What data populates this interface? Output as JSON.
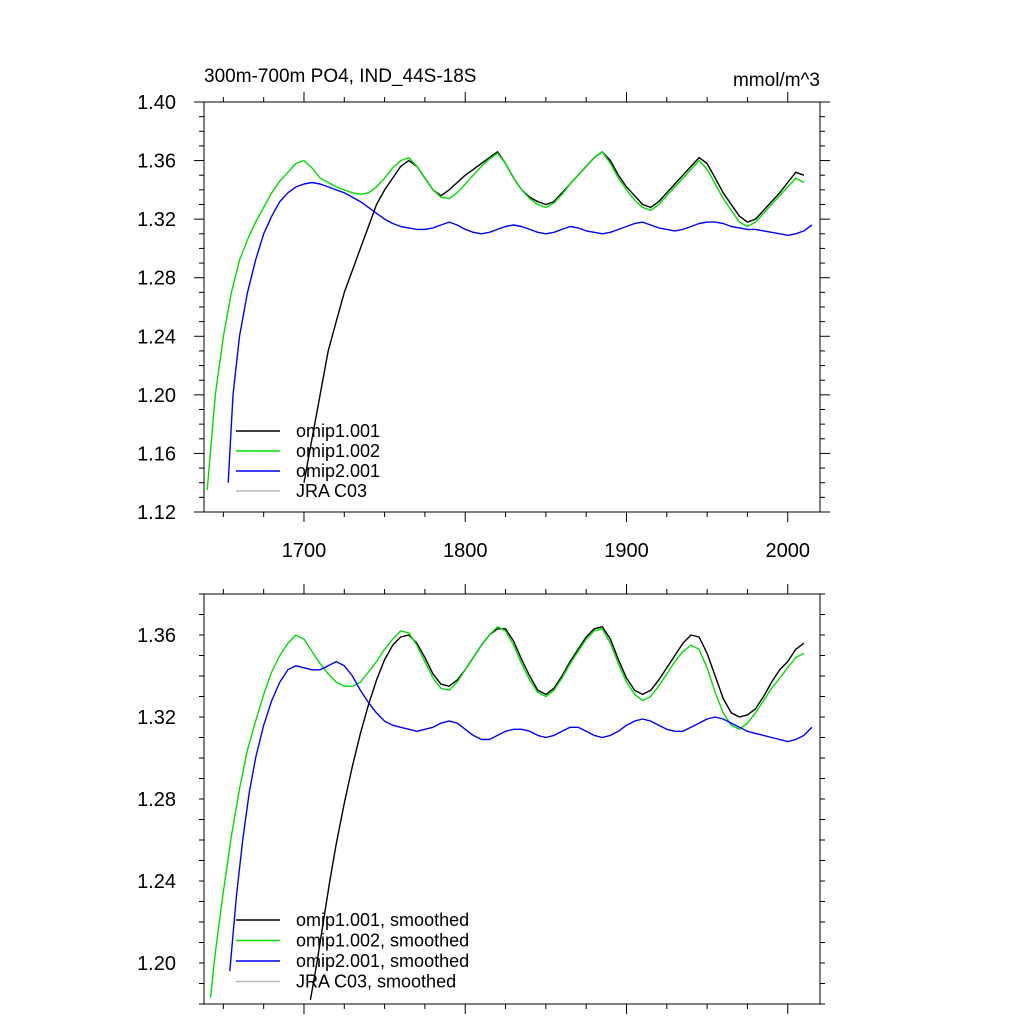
{
  "chart_data": [
    {
      "type": "line",
      "title": "300m-700m PO4, IND_44S-18S",
      "units": "mmol/m^3",
      "xlim": [
        1638,
        2020
      ],
      "ylim": [
        1.12,
        1.4
      ],
      "xticks": [
        1700,
        1800,
        1900,
        2000
      ],
      "xtick_labels": [
        "1700",
        "1800",
        "1900",
        "2000"
      ],
      "yticks": [
        1.12,
        1.16,
        1.2,
        1.24,
        1.28,
        1.32,
        1.36,
        1.4
      ],
      "ytick_labels": [
        "1.12",
        "1.16",
        "1.20",
        "1.24",
        "1.28",
        "1.32",
        "1.36",
        "1.40"
      ],
      "legend_position": "bottom-left",
      "series": [
        {
          "name": "omip1.001",
          "color": "#000000",
          "x": [
            1700,
            1705,
            1710,
            1715,
            1720,
            1725,
            1730,
            1735,
            1740,
            1745,
            1750,
            1755,
            1760,
            1765,
            1770,
            1775,
            1780,
            1785,
            1790,
            1795,
            1800,
            1805,
            1810,
            1815,
            1820,
            1825,
            1830,
            1835,
            1840,
            1845,
            1850,
            1855,
            1860,
            1865,
            1870,
            1875,
            1880,
            1885,
            1890,
            1895,
            1900,
            1905,
            1910,
            1915,
            1920,
            1925,
            1930,
            1935,
            1940,
            1945,
            1950,
            1955,
            1960,
            1965,
            1970,
            1975,
            1980,
            1985,
            1990,
            1995,
            2000,
            2005,
            2010
          ],
          "y": [
            1.14,
            1.17,
            1.2,
            1.23,
            1.25,
            1.27,
            1.285,
            1.3,
            1.315,
            1.33,
            1.34,
            1.348,
            1.356,
            1.36,
            1.356,
            1.348,
            1.34,
            1.336,
            1.34,
            1.345,
            1.35,
            1.354,
            1.358,
            1.362,
            1.366,
            1.358,
            1.348,
            1.34,
            1.335,
            1.332,
            1.33,
            1.332,
            1.338,
            1.344,
            1.35,
            1.356,
            1.362,
            1.366,
            1.36,
            1.35,
            1.342,
            1.336,
            1.33,
            1.328,
            1.332,
            1.338,
            1.344,
            1.35,
            1.356,
            1.362,
            1.358,
            1.348,
            1.338,
            1.33,
            1.322,
            1.318,
            1.32,
            1.326,
            1.332,
            1.338,
            1.345,
            1.352,
            1.35
          ]
        },
        {
          "name": "omip1.002",
          "color": "#00dd00",
          "x": [
            1640,
            1645,
            1650,
            1655,
            1660,
            1665,
            1670,
            1675,
            1680,
            1685,
            1690,
            1695,
            1700,
            1705,
            1710,
            1715,
            1720,
            1725,
            1730,
            1735,
            1740,
            1745,
            1750,
            1755,
            1760,
            1765,
            1770,
            1775,
            1780,
            1785,
            1790,
            1795,
            1800,
            1805,
            1810,
            1815,
            1820,
            1825,
            1830,
            1835,
            1840,
            1845,
            1850,
            1855,
            1860,
            1865,
            1870,
            1875,
            1880,
            1885,
            1890,
            1895,
            1900,
            1905,
            1910,
            1915,
            1920,
            1925,
            1930,
            1935,
            1940,
            1945,
            1950,
            1955,
            1960,
            1965,
            1970,
            1975,
            1980,
            1985,
            1990,
            1995,
            2000,
            2005,
            2010
          ],
          "y": [
            1.135,
            1.2,
            1.24,
            1.27,
            1.292,
            1.306,
            1.318,
            1.328,
            1.338,
            1.346,
            1.352,
            1.358,
            1.36,
            1.355,
            1.348,
            1.345,
            1.342,
            1.34,
            1.338,
            1.337,
            1.338,
            1.342,
            1.348,
            1.355,
            1.36,
            1.362,
            1.356,
            1.348,
            1.34,
            1.335,
            1.334,
            1.338,
            1.344,
            1.35,
            1.356,
            1.361,
            1.365,
            1.358,
            1.348,
            1.34,
            1.334,
            1.33,
            1.328,
            1.331,
            1.337,
            1.344,
            1.35,
            1.356,
            1.362,
            1.366,
            1.358,
            1.348,
            1.34,
            1.333,
            1.328,
            1.326,
            1.33,
            1.336,
            1.342,
            1.348,
            1.354,
            1.36,
            1.354,
            1.344,
            1.334,
            1.326,
            1.318,
            1.315,
            1.318,
            1.324,
            1.33,
            1.336,
            1.342,
            1.348,
            1.345
          ]
        },
        {
          "name": "omip2.001",
          "color": "#0000ff",
          "x": [
            1653,
            1656,
            1660,
            1665,
            1670,
            1675,
            1680,
            1685,
            1690,
            1695,
            1700,
            1705,
            1710,
            1715,
            1720,
            1725,
            1730,
            1735,
            1740,
            1745,
            1750,
            1755,
            1760,
            1765,
            1770,
            1775,
            1780,
            1785,
            1790,
            1795,
            1800,
            1805,
            1810,
            1815,
            1820,
            1825,
            1830,
            1835,
            1840,
            1845,
            1850,
            1855,
            1860,
            1865,
            1870,
            1875,
            1880,
            1885,
            1890,
            1895,
            1900,
            1905,
            1910,
            1915,
            1920,
            1925,
            1930,
            1935,
            1940,
            1945,
            1950,
            1955,
            1960,
            1965,
            1970,
            1975,
            1980,
            1985,
            1990,
            1995,
            2000,
            2005,
            2010,
            2015
          ],
          "y": [
            1.14,
            1.2,
            1.24,
            1.27,
            1.292,
            1.31,
            1.322,
            1.332,
            1.338,
            1.342,
            1.344,
            1.345,
            1.344,
            1.342,
            1.34,
            1.338,
            1.335,
            1.332,
            1.328,
            1.324,
            1.32,
            1.317,
            1.315,
            1.314,
            1.313,
            1.313,
            1.314,
            1.316,
            1.318,
            1.316,
            1.313,
            1.311,
            1.31,
            1.311,
            1.313,
            1.315,
            1.316,
            1.315,
            1.313,
            1.311,
            1.31,
            1.311,
            1.313,
            1.315,
            1.314,
            1.312,
            1.311,
            1.31,
            1.311,
            1.313,
            1.315,
            1.317,
            1.318,
            1.316,
            1.314,
            1.313,
            1.312,
            1.313,
            1.315,
            1.317,
            1.318,
            1.318,
            1.317,
            1.315,
            1.314,
            1.313,
            1.313,
            1.312,
            1.311,
            1.31,
            1.309,
            1.31,
            1.312,
            1.316
          ]
        },
        {
          "name": "JRA C03",
          "color": "#bbbbbb",
          "x": [],
          "y": []
        }
      ]
    },
    {
      "type": "line",
      "title": "",
      "xlim": [
        1638,
        2020
      ],
      "ylim": [
        1.18,
        1.38
      ],
      "xticks": [
        1700,
        1800,
        1900,
        2000
      ],
      "xtick_labels": [
        "",
        "",
        "",
        ""
      ],
      "yticks": [
        1.2,
        1.24,
        1.28,
        1.32,
        1.36
      ],
      "ytick_labels": [
        "1.20",
        "1.24",
        "1.28",
        "1.32",
        "1.36"
      ],
      "legend_position": "bottom-left",
      "series": [
        {
          "name": "omip1.001, smoothed",
          "color": "#000000",
          "x": [
            1704,
            1708,
            1712,
            1716,
            1720,
            1725,
            1730,
            1735,
            1740,
            1745,
            1750,
            1755,
            1760,
            1765,
            1770,
            1775,
            1780,
            1785,
            1790,
            1795,
            1800,
            1805,
            1810,
            1815,
            1820,
            1825,
            1830,
            1835,
            1840,
            1845,
            1850,
            1855,
            1860,
            1865,
            1870,
            1875,
            1880,
            1885,
            1890,
            1895,
            1900,
            1905,
            1910,
            1915,
            1920,
            1925,
            1930,
            1935,
            1940,
            1945,
            1950,
            1955,
            1960,
            1965,
            1970,
            1975,
            1980,
            1985,
            1990,
            1995,
            2000,
            2005,
            2010
          ],
          "y": [
            1.182,
            1.2,
            1.22,
            1.24,
            1.258,
            1.278,
            1.296,
            1.312,
            1.326,
            1.338,
            1.348,
            1.355,
            1.359,
            1.36,
            1.356,
            1.349,
            1.341,
            1.336,
            1.335,
            1.338,
            1.343,
            1.349,
            1.355,
            1.36,
            1.363,
            1.363,
            1.357,
            1.348,
            1.34,
            1.333,
            1.331,
            1.334,
            1.34,
            1.347,
            1.353,
            1.359,
            1.363,
            1.364,
            1.358,
            1.348,
            1.339,
            1.333,
            1.331,
            1.333,
            1.338,
            1.344,
            1.35,
            1.356,
            1.36,
            1.359,
            1.351,
            1.34,
            1.329,
            1.322,
            1.32,
            1.321,
            1.324,
            1.33,
            1.337,
            1.343,
            1.347,
            1.353,
            1.356
          ]
        },
        {
          "name": "omip1.002, smoothed",
          "color": "#00dd00",
          "x": [
            1642,
            1645,
            1650,
            1655,
            1660,
            1665,
            1670,
            1675,
            1680,
            1685,
            1690,
            1695,
            1700,
            1705,
            1710,
            1715,
            1720,
            1725,
            1730,
            1735,
            1740,
            1745,
            1750,
            1755,
            1760,
            1765,
            1770,
            1775,
            1780,
            1785,
            1790,
            1795,
            1800,
            1805,
            1810,
            1815,
            1820,
            1825,
            1830,
            1835,
            1840,
            1845,
            1850,
            1855,
            1860,
            1865,
            1870,
            1875,
            1880,
            1885,
            1890,
            1895,
            1900,
            1905,
            1910,
            1915,
            1920,
            1925,
            1930,
            1935,
            1940,
            1945,
            1950,
            1955,
            1960,
            1965,
            1970,
            1975,
            1980,
            1985,
            1990,
            1995,
            2000,
            2005,
            2010
          ],
          "y": [
            1.183,
            1.205,
            1.235,
            1.262,
            1.285,
            1.304,
            1.318,
            1.331,
            1.342,
            1.35,
            1.356,
            1.36,
            1.358,
            1.352,
            1.346,
            1.341,
            1.337,
            1.335,
            1.335,
            1.337,
            1.342,
            1.347,
            1.353,
            1.358,
            1.362,
            1.361,
            1.355,
            1.347,
            1.339,
            1.334,
            1.333,
            1.337,
            1.343,
            1.349,
            1.355,
            1.36,
            1.364,
            1.362,
            1.355,
            1.346,
            1.338,
            1.332,
            1.33,
            1.333,
            1.339,
            1.346,
            1.352,
            1.358,
            1.362,
            1.363,
            1.356,
            1.346,
            1.337,
            1.331,
            1.328,
            1.33,
            1.335,
            1.341,
            1.347,
            1.352,
            1.355,
            1.353,
            1.344,
            1.332,
            1.322,
            1.316,
            1.314,
            1.317,
            1.322,
            1.328,
            1.334,
            1.339,
            1.344,
            1.349,
            1.351
          ]
        },
        {
          "name": "omip2.001, smoothed",
          "color": "#0000ff",
          "x": [
            1654,
            1658,
            1662,
            1666,
            1670,
            1675,
            1680,
            1685,
            1690,
            1695,
            1700,
            1705,
            1710,
            1715,
            1720,
            1725,
            1730,
            1735,
            1740,
            1745,
            1750,
            1755,
            1760,
            1765,
            1770,
            1775,
            1780,
            1785,
            1790,
            1795,
            1800,
            1805,
            1810,
            1815,
            1820,
            1825,
            1830,
            1835,
            1840,
            1845,
            1850,
            1855,
            1860,
            1865,
            1870,
            1875,
            1880,
            1885,
            1890,
            1895,
            1900,
            1905,
            1910,
            1915,
            1920,
            1925,
            1930,
            1935,
            1940,
            1945,
            1950,
            1955,
            1960,
            1965,
            1970,
            1975,
            1980,
            1985,
            1990,
            1995,
            2000,
            2005,
            2010,
            2015
          ],
          "y": [
            1.196,
            1.232,
            1.26,
            1.283,
            1.3,
            1.316,
            1.328,
            1.337,
            1.343,
            1.345,
            1.344,
            1.343,
            1.343,
            1.345,
            1.347,
            1.345,
            1.34,
            1.333,
            1.327,
            1.322,
            1.318,
            1.316,
            1.315,
            1.314,
            1.313,
            1.314,
            1.315,
            1.317,
            1.318,
            1.317,
            1.314,
            1.311,
            1.309,
            1.309,
            1.311,
            1.313,
            1.314,
            1.314,
            1.313,
            1.311,
            1.31,
            1.311,
            1.313,
            1.315,
            1.315,
            1.313,
            1.311,
            1.31,
            1.311,
            1.313,
            1.316,
            1.318,
            1.319,
            1.318,
            1.316,
            1.314,
            1.313,
            1.313,
            1.315,
            1.317,
            1.319,
            1.32,
            1.319,
            1.317,
            1.315,
            1.313,
            1.312,
            1.311,
            1.31,
            1.309,
            1.308,
            1.309,
            1.311,
            1.315
          ]
        },
        {
          "name": "JRA C03, smoothed",
          "color": "#bbbbbb",
          "x": [],
          "y": []
        }
      ]
    }
  ]
}
